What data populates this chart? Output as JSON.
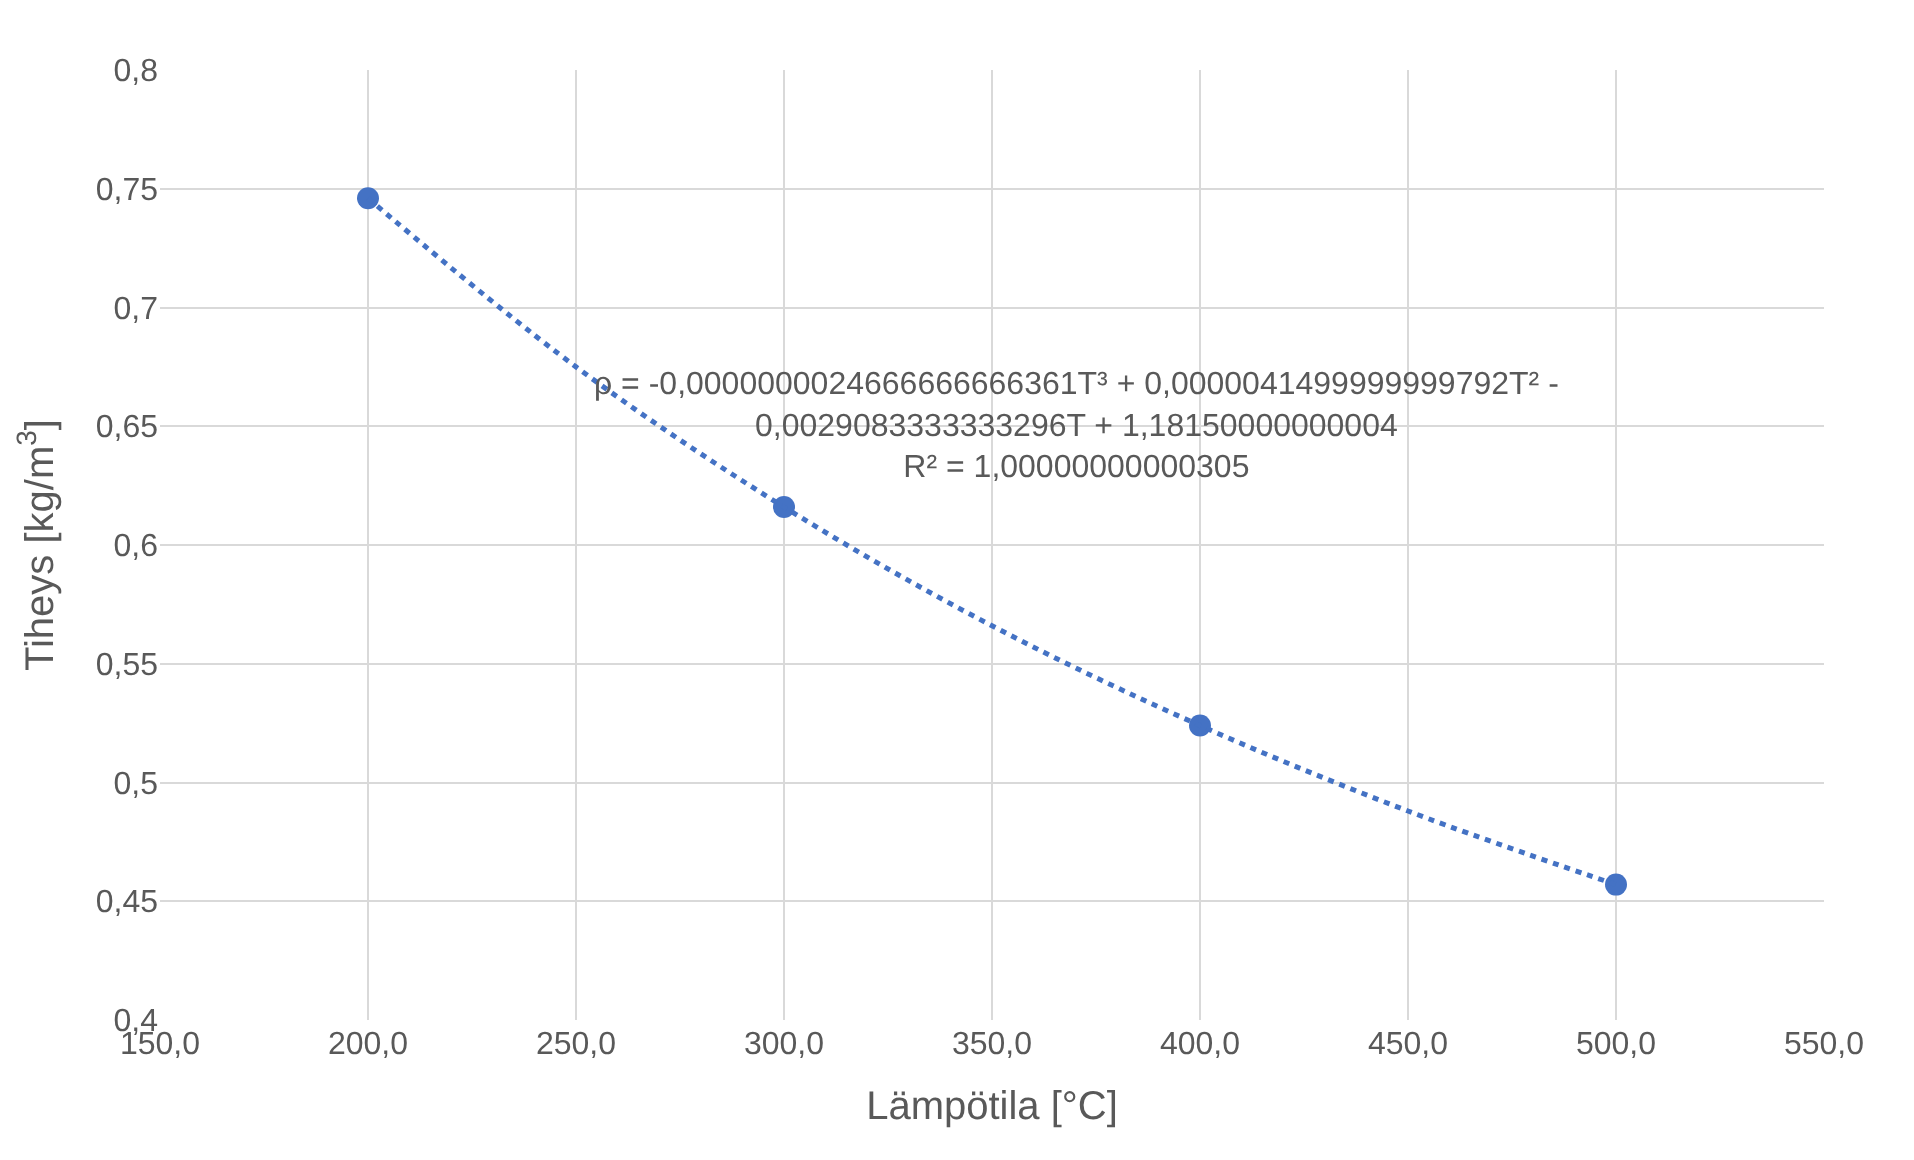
{
  "chart_data": {
    "type": "scatter",
    "xlabel": "Lämpötila [°C]",
    "ylabel": "Tiheys [kg/m$^{3}$]",
    "x": [
      200,
      300,
      400,
      500
    ],
    "series": [
      {
        "color": "#4472c4",
        "marker": "circle",
        "values": [
          0.746,
          0.616,
          0.524,
          0.457
        ]
      },
      {
        "type": "line",
        "color": "#4472c4",
        "line_style": "dotted",
        "marker": "none",
        "x": [
          200,
          250,
          300,
          350,
          400,
          450,
          500
        ],
        "values": [
          0.746,
          0.675,
          0.616,
          0.566,
          0.524,
          0.488,
          0.457
        ]
      }
    ],
    "xlim": [
      150,
      550
    ],
    "xticks": [
      {
        "value": 150,
        "label": "150,0"
      },
      {
        "value": 200,
        "label": "200,0"
      },
      {
        "value": 250,
        "label": "250,0"
      },
      {
        "value": 300,
        "label": "300,0"
      },
      {
        "value": 350,
        "label": "350,0"
      },
      {
        "value": 400,
        "label": "400,0"
      },
      {
        "value": 450,
        "label": "450,0"
      },
      {
        "value": 500,
        "label": "500,0"
      },
      {
        "value": 550,
        "label": "550,0"
      }
    ],
    "ylim": [
      0.4,
      0.8
    ],
    "yticks": [
      {
        "value": 0.4,
        "label": "0,4"
      },
      {
        "value": 0.45,
        "label": "0,45"
      },
      {
        "value": 0.5,
        "label": "0,5"
      },
      {
        "value": 0.55,
        "label": "0,55"
      },
      {
        "value": 0.6,
        "label": "0,6"
      },
      {
        "value": 0.65,
        "label": "0,65"
      },
      {
        "value": 0.7,
        "label": "0,7"
      },
      {
        "value": 0.75,
        "label": "0,75"
      },
      {
        "value": 0.8,
        "label": "0,8"
      }
    ],
    "annotations": [
      "ρ = -0,0000000024666666666361T³ + 0,0000041499999999792T² -\n0,0029083333333296T + 1,18150000000004\nR² = 1,00000000000305"
    ],
    "grid": true,
    "legend": false
  }
}
